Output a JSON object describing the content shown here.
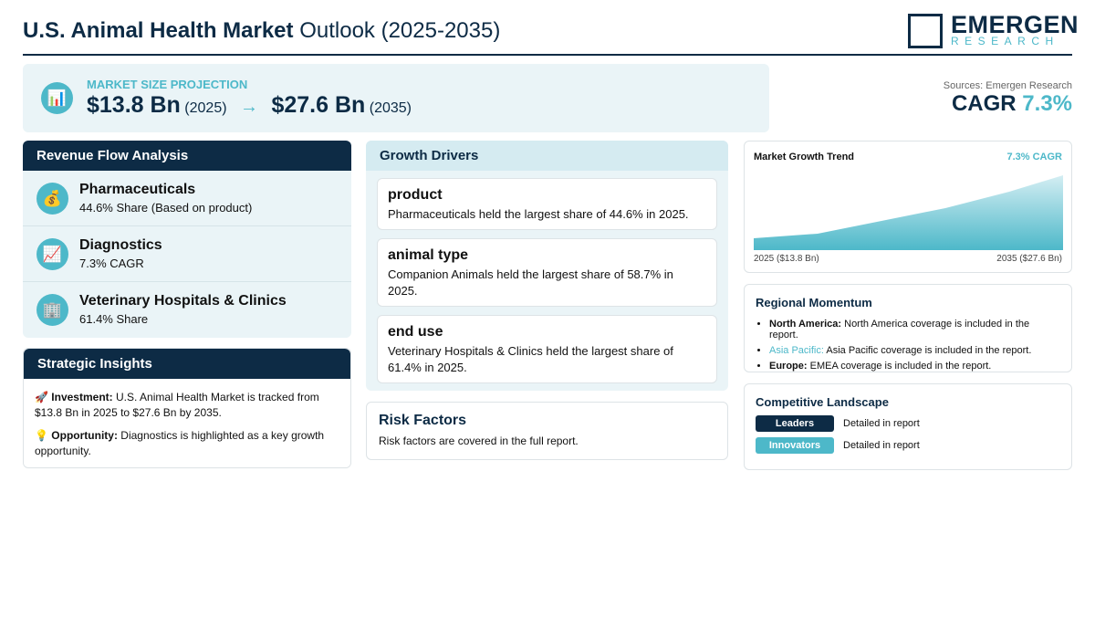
{
  "header": {
    "title_bold": "U.S. Animal Health Market",
    "title_rest": "Outlook (2025-2035)",
    "logo_main": "EMERGEN",
    "logo_sub": "RESEARCH"
  },
  "projection": {
    "icon": "📊",
    "label": "MARKET SIZE PROJECTION",
    "start_value": "$13.8 Bn",
    "start_year": "(2025)",
    "arrow": "→",
    "end_value": "$27.6 Bn",
    "end_year": "(2035)"
  },
  "sources": "Sources: Emergen Research",
  "cagr": {
    "label": "CAGR",
    "value": "7.3%"
  },
  "revenue_flow": {
    "title": "Revenue Flow Analysis",
    "items": [
      {
        "icon": "💰",
        "name": "Pharmaceuticals",
        "detail": "44.6% Share (Based on product)"
      },
      {
        "icon": "📈",
        "name": "Diagnostics",
        "detail": "7.3% CAGR"
      },
      {
        "icon": "🏢",
        "name": "Veterinary Hospitals & Clinics",
        "detail": "61.4% Share"
      }
    ]
  },
  "strategic_insights": {
    "title": "Strategic Insights",
    "items": [
      {
        "icon": "🚀",
        "label": "Investment:",
        "text": "U.S. Animal Health Market is tracked from $13.8 Bn in 2025 to $27.6 Bn by 2035."
      },
      {
        "icon": "💡",
        "label": "Opportunity:",
        "text": "Diagnostics is highlighted as a key growth opportunity."
      }
    ]
  },
  "growth_drivers": {
    "title": "Growth Drivers",
    "items": [
      {
        "heading": "product",
        "text": "Pharmaceuticals held the largest share of 44.6% in 2025."
      },
      {
        "heading": "animal type",
        "text": "Companion Animals held the largest share of 58.7% in 2025."
      },
      {
        "heading": "end use",
        "text": "Veterinary Hospitals & Clinics held the largest share of 61.4% in 2025."
      }
    ]
  },
  "risk_factors": {
    "title": "Risk Factors",
    "text": "Risk factors are covered in the full report."
  },
  "trend": {
    "title": "Market Growth Trend",
    "cagr": "7.3% CAGR",
    "start_label": "2025 ($13.8 Bn)",
    "end_label": "2035 ($27.6 Bn)"
  },
  "regional": {
    "title": "Regional Momentum",
    "items": [
      {
        "region": "North America:",
        "text": "North America coverage is included in the report."
      },
      {
        "region": "Asia Pacific:",
        "text": "Asia Pacific coverage is included in the report."
      },
      {
        "region": "Europe:",
        "text": "EMEA coverage is included in the report."
      }
    ]
  },
  "competitive": {
    "title": "Competitive Landscape",
    "rows": [
      {
        "badge": "Leaders",
        "text": "Detailed in report"
      },
      {
        "badge": "Innovators",
        "text": "Detailed in report"
      }
    ]
  }
}
